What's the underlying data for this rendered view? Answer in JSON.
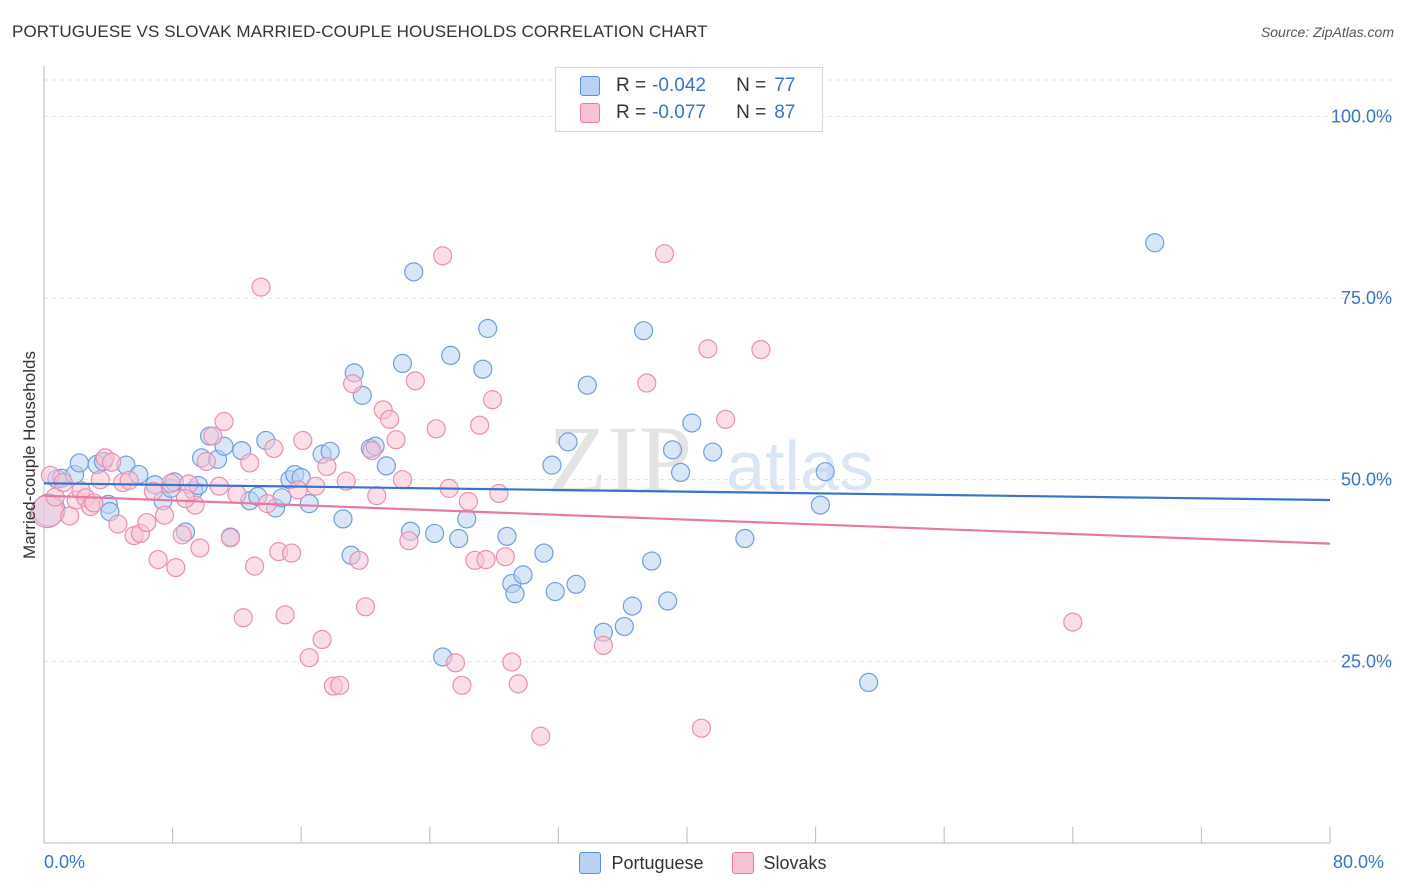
{
  "title": "PORTUGUESE VS SLOVAK MARRIED-COUPLE HOUSEHOLDS CORRELATION CHART",
  "source": "Source: ZipAtlas.com",
  "watermark": {
    "zip": "ZIP",
    "atlas": "atlas"
  },
  "legend_top": [
    {
      "r_label": "R =",
      "r_value": "-0.042",
      "n_label": "N =",
      "n_value": "77",
      "color": "#5b8fd6",
      "fill": "#b9d1f2"
    },
    {
      "r_label": "R =",
      "r_value": "-0.077",
      "n_label": "N =",
      "n_value": "87",
      "color": "#e67ba0",
      "fill": "#f7c3d4"
    }
  ],
  "legend_bottom": [
    {
      "label": "Portuguese",
      "color": "#5b8fd6",
      "fill": "#b9d1f2"
    },
    {
      "label": "Slovaks",
      "color": "#e67ba0",
      "fill": "#f7c3d4"
    }
  ],
  "chart_data": {
    "type": "scatter",
    "title": "PORTUGUESE VS SLOVAK MARRIED-COUPLE HOUSEHOLDS CORRELATION CHART",
    "xlabel": "",
    "ylabel": "Married-couple Households",
    "xlim": [
      0,
      80
    ],
    "ylim": [
      0,
      105
    ],
    "x_tick_labels": [
      "0.0%",
      "80.0%"
    ],
    "y_ticks": [
      25,
      50,
      75,
      100
    ],
    "y_tick_labels": [
      "25.0%",
      "50.0%",
      "75.0%",
      "100.0%"
    ],
    "grid": true,
    "legend_position": "bottom-center",
    "series": [
      {
        "name": "Portuguese",
        "color": "#3874c9",
        "point_fill": "#b9d1f2",
        "trend": {
          "x": [
            0,
            80
          ],
          "y": [
            49.5,
            47.2
          ]
        },
        "points": [
          [
            0.3,
            45.8
          ],
          [
            0.8,
            50.1
          ],
          [
            1.1,
            50.2
          ],
          [
            1.9,
            50.7
          ],
          [
            2.2,
            52.3
          ],
          [
            3.3,
            52.1
          ],
          [
            3.7,
            52.5
          ],
          [
            4.0,
            46.6
          ],
          [
            4.1,
            45.6
          ],
          [
            5.1,
            52.0
          ],
          [
            5.9,
            50.7
          ],
          [
            6.9,
            49.3
          ],
          [
            7.4,
            47.1
          ],
          [
            7.9,
            48.8
          ],
          [
            8.1,
            49.7
          ],
          [
            8.8,
            42.8
          ],
          [
            9.3,
            48.5
          ],
          [
            9.8,
            53.0
          ],
          [
            10.3,
            56.0
          ],
          [
            10.8,
            52.8
          ],
          [
            11.2,
            54.6
          ],
          [
            11.6,
            42.1
          ],
          [
            12.3,
            54.0
          ],
          [
            12.8,
            47.1
          ],
          [
            13.3,
            47.7
          ],
          [
            13.8,
            55.4
          ],
          [
            14.4,
            46.1
          ],
          [
            15.3,
            50.0
          ],
          [
            15.6,
            50.7
          ],
          [
            16.0,
            50.3
          ],
          [
            16.5,
            46.7
          ],
          [
            17.3,
            53.5
          ],
          [
            18.6,
            44.6
          ],
          [
            19.1,
            39.6
          ],
          [
            19.3,
            64.7
          ],
          [
            19.8,
            61.6
          ],
          [
            20.3,
            54.3
          ],
          [
            20.6,
            54.6
          ],
          [
            21.3,
            51.9
          ],
          [
            22.3,
            66.0
          ],
          [
            22.8,
            42.9
          ],
          [
            23.0,
            78.6
          ],
          [
            24.3,
            42.6
          ],
          [
            25.3,
            67.1
          ],
          [
            25.8,
            41.9
          ],
          [
            26.3,
            44.6
          ],
          [
            27.3,
            65.2
          ],
          [
            27.6,
            70.8
          ],
          [
            28.8,
            42.2
          ],
          [
            29.1,
            35.7
          ],
          [
            29.3,
            34.3
          ],
          [
            29.8,
            36.9
          ],
          [
            31.1,
            39.9
          ],
          [
            31.6,
            52.0
          ],
          [
            31.8,
            34.6
          ],
          [
            32.6,
            55.2
          ],
          [
            33.1,
            35.6
          ],
          [
            33.8,
            63.0
          ],
          [
            34.8,
            29.0
          ],
          [
            36.1,
            29.8
          ],
          [
            36.6,
            32.6
          ],
          [
            37.3,
            70.5
          ],
          [
            37.8,
            38.8
          ],
          [
            38.8,
            33.3
          ],
          [
            39.1,
            54.1
          ],
          [
            39.6,
            51.0
          ],
          [
            40.3,
            57.8
          ],
          [
            41.6,
            53.8
          ],
          [
            43.6,
            41.9
          ],
          [
            48.3,
            46.5
          ],
          [
            48.6,
            51.1
          ],
          [
            51.3,
            22.1
          ],
          [
            69.1,
            82.6
          ],
          [
            24.8,
            25.6
          ],
          [
            17.8,
            53.9
          ],
          [
            14.8,
            47.5
          ],
          [
            9.6,
            49.2
          ]
        ]
      },
      {
        "name": "Slovaks",
        "color": "#e67ba0",
        "point_fill": "#f7c3d4",
        "trend": {
          "x": [
            0,
            80
          ],
          "y": [
            47.8,
            41.2
          ]
        },
        "points": [
          [
            0.2,
            45.6
          ],
          [
            0.4,
            50.6
          ],
          [
            0.7,
            47.6
          ],
          [
            1.2,
            49.6
          ],
          [
            1.6,
            45.0
          ],
          [
            2.0,
            47.2
          ],
          [
            2.3,
            48.5
          ],
          [
            2.6,
            47.5
          ],
          [
            2.9,
            46.3
          ],
          [
            3.1,
            46.8
          ],
          [
            3.5,
            50.0
          ],
          [
            3.8,
            53.0
          ],
          [
            4.2,
            52.4
          ],
          [
            4.6,
            43.9
          ],
          [
            4.9,
            49.6
          ],
          [
            5.3,
            49.9
          ],
          [
            5.6,
            42.3
          ],
          [
            6.0,
            42.6
          ],
          [
            6.4,
            44.1
          ],
          [
            6.8,
            48.4
          ],
          [
            7.1,
            39.0
          ],
          [
            7.5,
            45.1
          ],
          [
            7.9,
            49.5
          ],
          [
            8.2,
            37.9
          ],
          [
            8.6,
            42.4
          ],
          [
            9.0,
            49.4
          ],
          [
            9.4,
            46.5
          ],
          [
            9.7,
            40.6
          ],
          [
            10.1,
            52.5
          ],
          [
            10.5,
            56.0
          ],
          [
            10.9,
            49.1
          ],
          [
            11.2,
            58.0
          ],
          [
            11.6,
            42.0
          ],
          [
            12.0,
            48.0
          ],
          [
            12.4,
            31.0
          ],
          [
            12.8,
            52.3
          ],
          [
            13.1,
            38.1
          ],
          [
            13.5,
            76.5
          ],
          [
            13.9,
            46.7
          ],
          [
            14.3,
            54.3
          ],
          [
            14.6,
            40.1
          ],
          [
            15.0,
            31.4
          ],
          [
            15.4,
            39.9
          ],
          [
            15.8,
            48.6
          ],
          [
            16.1,
            55.4
          ],
          [
            16.5,
            25.5
          ],
          [
            16.9,
            49.1
          ],
          [
            17.3,
            28.0
          ],
          [
            17.6,
            51.8
          ],
          [
            18.0,
            21.6
          ],
          [
            18.4,
            21.7
          ],
          [
            18.8,
            49.8
          ],
          [
            19.2,
            63.2
          ],
          [
            19.6,
            38.9
          ],
          [
            20.0,
            32.5
          ],
          [
            20.4,
            54.0
          ],
          [
            20.7,
            47.8
          ],
          [
            21.1,
            59.6
          ],
          [
            21.5,
            58.3
          ],
          [
            21.9,
            55.5
          ],
          [
            22.3,
            50.0
          ],
          [
            22.7,
            41.6
          ],
          [
            23.1,
            63.6
          ],
          [
            24.4,
            57.0
          ],
          [
            24.8,
            80.8
          ],
          [
            25.2,
            48.8
          ],
          [
            25.6,
            24.8
          ],
          [
            26.0,
            21.7
          ],
          [
            26.4,
            47.0
          ],
          [
            26.8,
            38.9
          ],
          [
            27.1,
            57.5
          ],
          [
            27.5,
            39.0
          ],
          [
            27.9,
            61.0
          ],
          [
            28.3,
            48.1
          ],
          [
            28.7,
            39.4
          ],
          [
            29.1,
            24.9
          ],
          [
            29.5,
            21.9
          ],
          [
            30.9,
            14.7
          ],
          [
            34.8,
            27.2
          ],
          [
            37.5,
            63.3
          ],
          [
            38.6,
            81.1
          ],
          [
            40.9,
            15.8
          ],
          [
            41.3,
            68.0
          ],
          [
            42.4,
            58.3
          ],
          [
            44.6,
            67.9
          ],
          [
            64.0,
            30.4
          ],
          [
            8.8,
            47.4
          ]
        ]
      }
    ]
  }
}
